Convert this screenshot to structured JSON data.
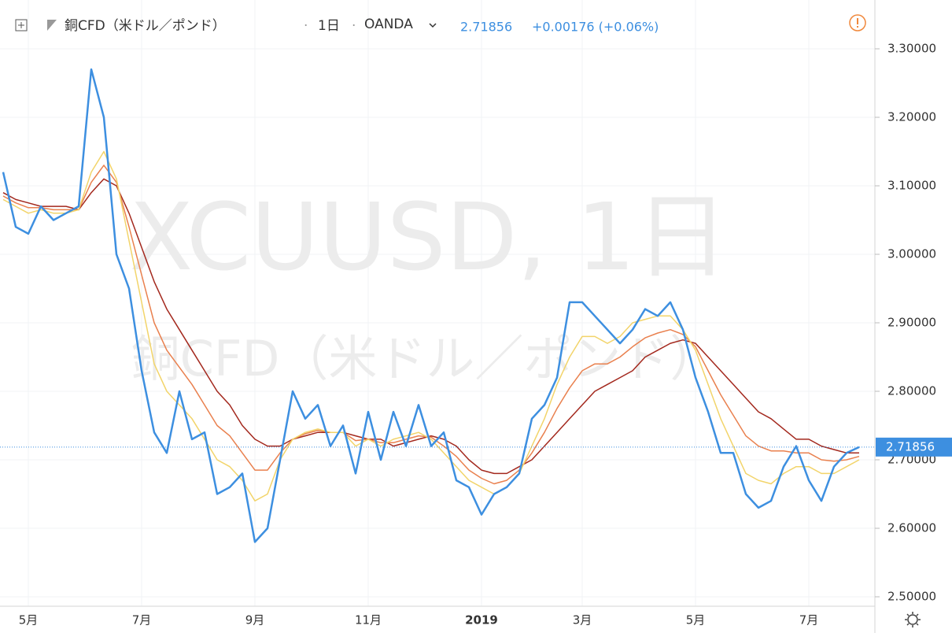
{
  "chart_data": {
    "type": "line",
    "title": "銅CFD（米ドル／ポンド）",
    "interval": "1日",
    "source": "OANDA",
    "change": "+0.00176 (+0.06%)",
    "watermark": "XCUUSD, 1日",
    "categories": [
      null,
      null,
      "5月",
      null,
      null,
      null,
      null,
      null,
      null,
      null,
      null,
      "7月",
      null,
      null,
      null,
      null,
      null,
      null,
      null,
      null,
      "9月",
      null,
      null,
      null,
      null,
      null,
      null,
      null,
      null,
      "11月",
      null,
      null,
      null,
      null,
      null,
      null,
      null,
      null,
      "2019",
      null,
      null,
      null,
      null,
      null,
      null,
      null,
      "3月",
      null,
      null,
      null,
      null,
      null,
      null,
      null,
      null,
      "5月",
      null,
      null,
      null,
      null,
      null,
      null,
      null,
      null,
      "7月",
      null,
      null,
      null,
      null
    ],
    "series": [
      {
        "color": "#3d8fe0",
        "values": [
          3.12,
          3.04,
          3.03,
          3.07,
          3.05,
          3.06,
          3.07,
          3.27,
          3.2,
          3.0,
          2.95,
          2.83,
          2.74,
          2.71,
          2.8,
          2.73,
          2.74,
          2.65,
          2.66,
          2.68,
          2.58,
          2.6,
          2.7,
          2.8,
          2.76,
          2.78,
          2.72,
          2.75,
          2.68,
          2.77,
          2.7,
          2.77,
          2.72,
          2.78,
          2.72,
          2.74,
          2.67,
          2.66,
          2.62,
          2.65,
          2.66,
          2.68,
          2.76,
          2.78,
          2.82,
          2.93,
          2.93,
          2.91,
          2.89,
          2.87,
          2.89,
          2.92,
          2.91,
          2.93,
          2.89,
          2.82,
          2.77,
          2.71,
          2.71,
          2.65,
          2.63,
          2.64,
          2.69,
          2.72,
          2.67,
          2.64,
          2.69,
          2.71,
          2.71856
        ]
      },
      {
        "color": "#f2d46a",
        "values": [
          3.08,
          3.07,
          3.06,
          3.065,
          3.06,
          3.06,
          3.065,
          3.12,
          3.15,
          3.11,
          3.02,
          2.93,
          2.84,
          2.8,
          2.78,
          2.76,
          2.73,
          2.7,
          2.69,
          2.67,
          2.64,
          2.65,
          2.7,
          2.73,
          2.74,
          2.745,
          2.74,
          2.74,
          2.72,
          2.73,
          2.72,
          2.73,
          2.735,
          2.74,
          2.73,
          2.71,
          2.69,
          2.67,
          2.66,
          2.65,
          2.66,
          2.68,
          2.72,
          2.76,
          2.81,
          2.85,
          2.88,
          2.88,
          2.87,
          2.88,
          2.9,
          2.905,
          2.91,
          2.91,
          2.89,
          2.86,
          2.81,
          2.76,
          2.72,
          2.68,
          2.67,
          2.665,
          2.68,
          2.69,
          2.69,
          2.68,
          2.68,
          2.69,
          2.7
        ]
      },
      {
        "color": "#e9804e",
        "values": [
          3.085,
          3.075,
          3.068,
          3.068,
          3.065,
          3.065,
          3.065,
          3.105,
          3.13,
          3.105,
          3.04,
          2.97,
          2.9,
          2.86,
          2.835,
          2.81,
          2.78,
          2.75,
          2.735,
          2.71,
          2.685,
          2.685,
          2.71,
          2.73,
          2.738,
          2.743,
          2.74,
          2.74,
          2.728,
          2.73,
          2.725,
          2.725,
          2.73,
          2.735,
          2.733,
          2.72,
          2.705,
          2.685,
          2.673,
          2.665,
          2.67,
          2.685,
          2.71,
          2.74,
          2.775,
          2.805,
          2.83,
          2.84,
          2.84,
          2.85,
          2.865,
          2.878,
          2.885,
          2.89,
          2.883,
          2.865,
          2.83,
          2.795,
          2.765,
          2.735,
          2.72,
          2.713,
          2.713,
          2.71,
          2.71,
          2.7,
          2.698,
          2.7,
          2.705
        ]
      },
      {
        "color": "#a3281d",
        "values": [
          3.09,
          3.08,
          3.075,
          3.07,
          3.07,
          3.07,
          3.065,
          3.09,
          3.11,
          3.1,
          3.06,
          3.01,
          2.96,
          2.92,
          2.89,
          2.86,
          2.83,
          2.8,
          2.78,
          2.75,
          2.73,
          2.72,
          2.72,
          2.73,
          2.735,
          2.74,
          2.74,
          2.74,
          2.735,
          2.73,
          2.73,
          2.72,
          2.725,
          2.73,
          2.735,
          2.73,
          2.72,
          2.7,
          2.685,
          2.68,
          2.68,
          2.69,
          2.7,
          2.72,
          2.74,
          2.76,
          2.78,
          2.8,
          2.81,
          2.82,
          2.83,
          2.85,
          2.86,
          2.87,
          2.875,
          2.87,
          2.85,
          2.83,
          2.81,
          2.79,
          2.77,
          2.76,
          2.745,
          2.73,
          2.73,
          2.72,
          2.715,
          2.71,
          2.71
        ]
      }
    ],
    "ylim": [
      2.48621,
      3.37126
    ],
    "yticks": [
      {
        "value": 2.5,
        "label": "2.50000"
      },
      {
        "value": 2.6,
        "label": "2.60000"
      },
      {
        "value": 2.7,
        "label": "2.70000"
      },
      {
        "value": 2.8,
        "label": "2.80000"
      },
      {
        "value": 2.9,
        "label": "2.90000"
      },
      {
        "value": 3.0,
        "label": "3.00000"
      },
      {
        "value": 3.1,
        "label": "3.10000"
      },
      {
        "value": 3.2,
        "label": "3.20000"
      },
      {
        "value": 3.3,
        "label": "3.30000"
      }
    ],
    "grid": true
  }
}
